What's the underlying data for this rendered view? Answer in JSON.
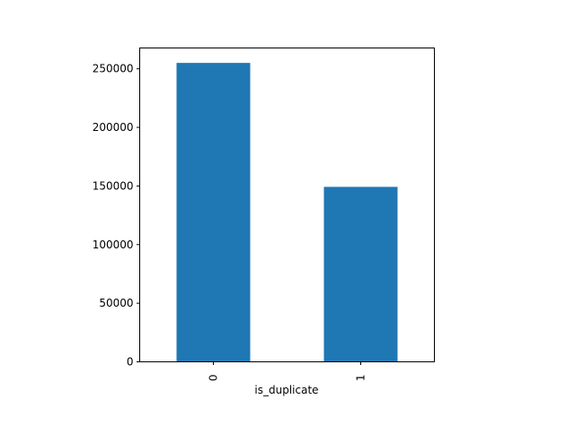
{
  "chart_data": {
    "type": "bar",
    "categories": [
      "0",
      "1"
    ],
    "values": [
      255027,
      149263
    ],
    "xlabel": "is_duplicate",
    "ylabel": "",
    "ylim": [
      0,
      267764
    ],
    "yticks": [
      0,
      50000,
      100000,
      150000,
      200000,
      250000
    ],
    "ytick_labels": [
      "0",
      "50000",
      "100000",
      "150000",
      "200000",
      "250000"
    ],
    "colors": {
      "bar": "#1f77b4",
      "axes": "#000000",
      "background": "#ffffff"
    },
    "grid": false,
    "legend": "none"
  }
}
